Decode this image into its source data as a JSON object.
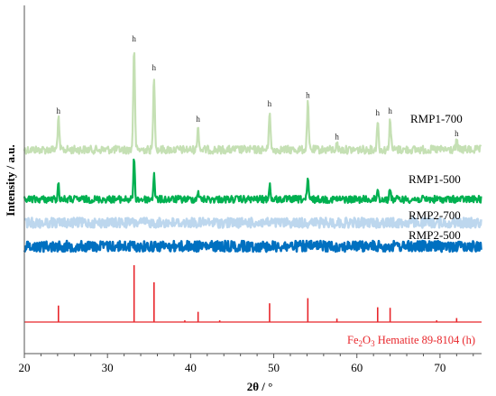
{
  "chart_data": {
    "type": "line",
    "xlabel": "2θ / °",
    "ylabel": "Intensity / a.u.",
    "xlim": [
      20,
      75
    ],
    "x_ticks": [
      "20",
      "30",
      "40",
      "50",
      "60",
      "70"
    ],
    "grid": false,
    "peak_marker": "h",
    "reference": {
      "label": "Fe2O3 Hematite 89-8104 (h)",
      "color": "#e8262b",
      "sticks": [
        {
          "x": 24.1,
          "h": 0.29
        },
        {
          "x": 33.2,
          "h": 1.0
        },
        {
          "x": 35.6,
          "h": 0.7
        },
        {
          "x": 39.3,
          "h": 0.03
        },
        {
          "x": 40.9,
          "h": 0.18
        },
        {
          "x": 43.5,
          "h": 0.03
        },
        {
          "x": 49.5,
          "h": 0.33
        },
        {
          "x": 54.1,
          "h": 0.42
        },
        {
          "x": 57.6,
          "h": 0.06
        },
        {
          "x": 62.5,
          "h": 0.26
        },
        {
          "x": 64.0,
          "h": 0.25
        },
        {
          "x": 69.6,
          "h": 0.03
        },
        {
          "x": 72.0,
          "h": 0.07
        }
      ]
    },
    "series": [
      {
        "name": "RMP1-700",
        "color": "#c5e0b4",
        "peaks": [
          {
            "x": 24.1,
            "h": 0.3
          },
          {
            "x": 33.2,
            "h": 1.0
          },
          {
            "x": 35.6,
            "h": 0.72
          },
          {
            "x": 40.9,
            "h": 0.22
          },
          {
            "x": 49.5,
            "h": 0.37
          },
          {
            "x": 54.1,
            "h": 0.45
          },
          {
            "x": 57.6,
            "h": 0.05
          },
          {
            "x": 62.5,
            "h": 0.28
          },
          {
            "x": 64.0,
            "h": 0.3
          },
          {
            "x": 72.0,
            "h": 0.08
          }
        ],
        "labeled_peaks": [
          24.1,
          33.2,
          35.6,
          40.9,
          49.5,
          54.1,
          57.6,
          62.5,
          64.0,
          72.0
        ]
      },
      {
        "name": "RMP1-500",
        "color": "#00b050",
        "peaks": [
          {
            "x": 24.1,
            "h": 0.16
          },
          {
            "x": 33.2,
            "h": 0.45
          },
          {
            "x": 35.6,
            "h": 0.29
          },
          {
            "x": 40.9,
            "h": 0.1
          },
          {
            "x": 49.5,
            "h": 0.17
          },
          {
            "x": 54.1,
            "h": 0.22
          },
          {
            "x": 62.5,
            "h": 0.12
          },
          {
            "x": 64.0,
            "h": 0.13
          }
        ]
      },
      {
        "name": "RMP2-700",
        "color": "#bdd7ee",
        "peaks": []
      },
      {
        "name": "RMP2-500",
        "color": "#0070c0",
        "peaks": []
      }
    ]
  }
}
